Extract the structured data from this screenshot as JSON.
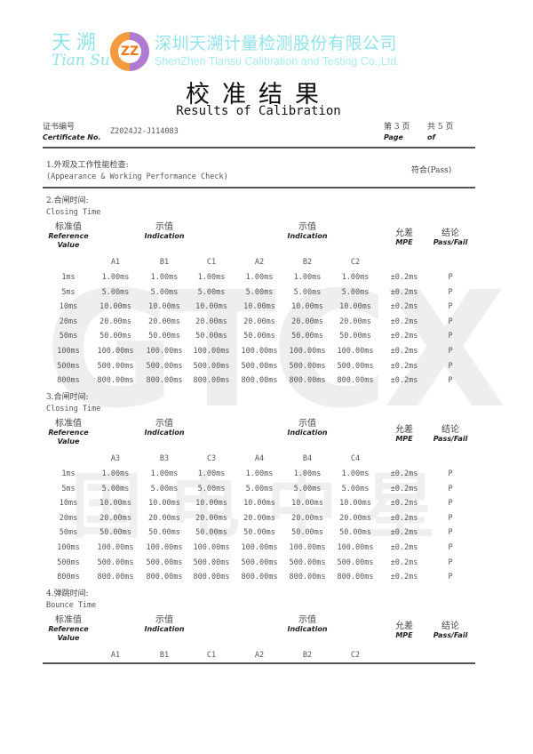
{
  "header": {
    "logo_cn": "天溯",
    "logo_en": "Tian Su",
    "seal_text": "ZZ",
    "company_cn": "深圳天溯计量检测股份有限公司",
    "company_en": "ShenZhen Tiansu Calibration and Testing Co.,Ltd.",
    "title_cn": "校准结果",
    "title_en": "Results of Calibration"
  },
  "watermark": {
    "latin": "GTCX",
    "cn": "国电中星"
  },
  "certificate": {
    "label_cn": "证书编号",
    "label_en": "Certificate No.",
    "number": "Z2024J2-J114083",
    "page_cn": "第 3 页",
    "page_en": "Page",
    "total_cn": "共 5 页",
    "total_en": "of"
  },
  "section1": {
    "title_cn": "1.外观及工作性能检查:",
    "title_en": "(Appearance & Working Performance Check)",
    "result": "符合(Pass)"
  },
  "table_header": {
    "ref_cn": "标准值",
    "ref_en1": "Reference",
    "ref_en2": "Value",
    "ind_cn": "示值",
    "ind_en": "Indication",
    "mpe_cn": "允差",
    "mpe_en": "MPE",
    "res_cn": "结论",
    "res_en": "Pass/Fail"
  },
  "sections": [
    {
      "title_cn": "2.合闸时间:",
      "title_en": "Closing Time",
      "columns": [
        "A1",
        "B1",
        "C1",
        "A2",
        "B2",
        "C2"
      ],
      "rows": [
        [
          "1ms",
          "1.00ms",
          "1.00ms",
          "1.00ms",
          "1.00ms",
          "1.00ms",
          "1.00ms",
          "±0.2ms",
          "P"
        ],
        [
          "5ms",
          "5.00ms",
          "5.00ms",
          "5.00ms",
          "5.00ms",
          "5.00ms",
          "5.00ms",
          "±0.2ms",
          "P"
        ],
        [
          "10ms",
          "10.00ms",
          "10.00ms",
          "10.00ms",
          "10.00ms",
          "10.00ms",
          "10.00ms",
          "±0.2ms",
          "P"
        ],
        [
          "20ms",
          "20.00ms",
          "20.00ms",
          "20.00ms",
          "20.00ms",
          "20.00ms",
          "20.00ms",
          "±0.2ms",
          "P"
        ],
        [
          "50ms",
          "50.00ms",
          "50.00ms",
          "50.00ms",
          "50.00ms",
          "50.00ms",
          "50.00ms",
          "±0.2ms",
          "P"
        ],
        [
          "100ms",
          "100.00ms",
          "100.00ms",
          "100.00ms",
          "100.00ms",
          "100.00ms",
          "100.00ms",
          "±0.2ms",
          "P"
        ],
        [
          "500ms",
          "500.00ms",
          "500.00ms",
          "500.00ms",
          "500.00ms",
          "500.00ms",
          "500.00ms",
          "±0.2ms",
          "P"
        ],
        [
          "800ms",
          "800.00ms",
          "800.00ms",
          "800.00ms",
          "800.00ms",
          "800.00ms",
          "800.00ms",
          "±0.2ms",
          "P"
        ]
      ]
    },
    {
      "title_cn": "3.合闸时间:",
      "title_en": "Closing Time",
      "columns": [
        "A3",
        "B3",
        "C3",
        "A4",
        "B4",
        "C4"
      ],
      "rows": [
        [
          "1ms",
          "1.00ms",
          "1.00ms",
          "1.00ms",
          "1.00ms",
          "1.00ms",
          "1.00ms",
          "±0.2ms",
          "P"
        ],
        [
          "5ms",
          "5.00ms",
          "5.00ms",
          "5.00ms",
          "5.00ms",
          "5.00ms",
          "5.00ms",
          "±0.2ms",
          "P"
        ],
        [
          "10ms",
          "10.00ms",
          "10.00ms",
          "10.00ms",
          "10.00ms",
          "10.00ms",
          "10.00ms",
          "±0.2ms",
          "P"
        ],
        [
          "20ms",
          "20.00ms",
          "20.00ms",
          "20.00ms",
          "20.00ms",
          "20.00ms",
          "20.00ms",
          "±0.2ms",
          "P"
        ],
        [
          "50ms",
          "50.00ms",
          "50.00ms",
          "50.00ms",
          "50.00ms",
          "50.00ms",
          "50.00ms",
          "±0.2ms",
          "P"
        ],
        [
          "100ms",
          "100.00ms",
          "100.00ms",
          "100.00ms",
          "100.00ms",
          "100.00ms",
          "100.00ms",
          "±0.2ms",
          "P"
        ],
        [
          "500ms",
          "500.00ms",
          "500.00ms",
          "500.00ms",
          "500.00ms",
          "500.00ms",
          "500.00ms",
          "±0.2ms",
          "P"
        ],
        [
          "800ms",
          "800.00ms",
          "800.00ms",
          "800.00ms",
          "800.00ms",
          "800.00ms",
          "800.00ms",
          "±0.2ms",
          "P"
        ]
      ]
    },
    {
      "title_cn": "4.弹跳时间:",
      "title_en": "Bounce Time",
      "columns": [
        "A1",
        "B1",
        "C1",
        "A2",
        "B2",
        "C2"
      ],
      "rows": []
    }
  ]
}
